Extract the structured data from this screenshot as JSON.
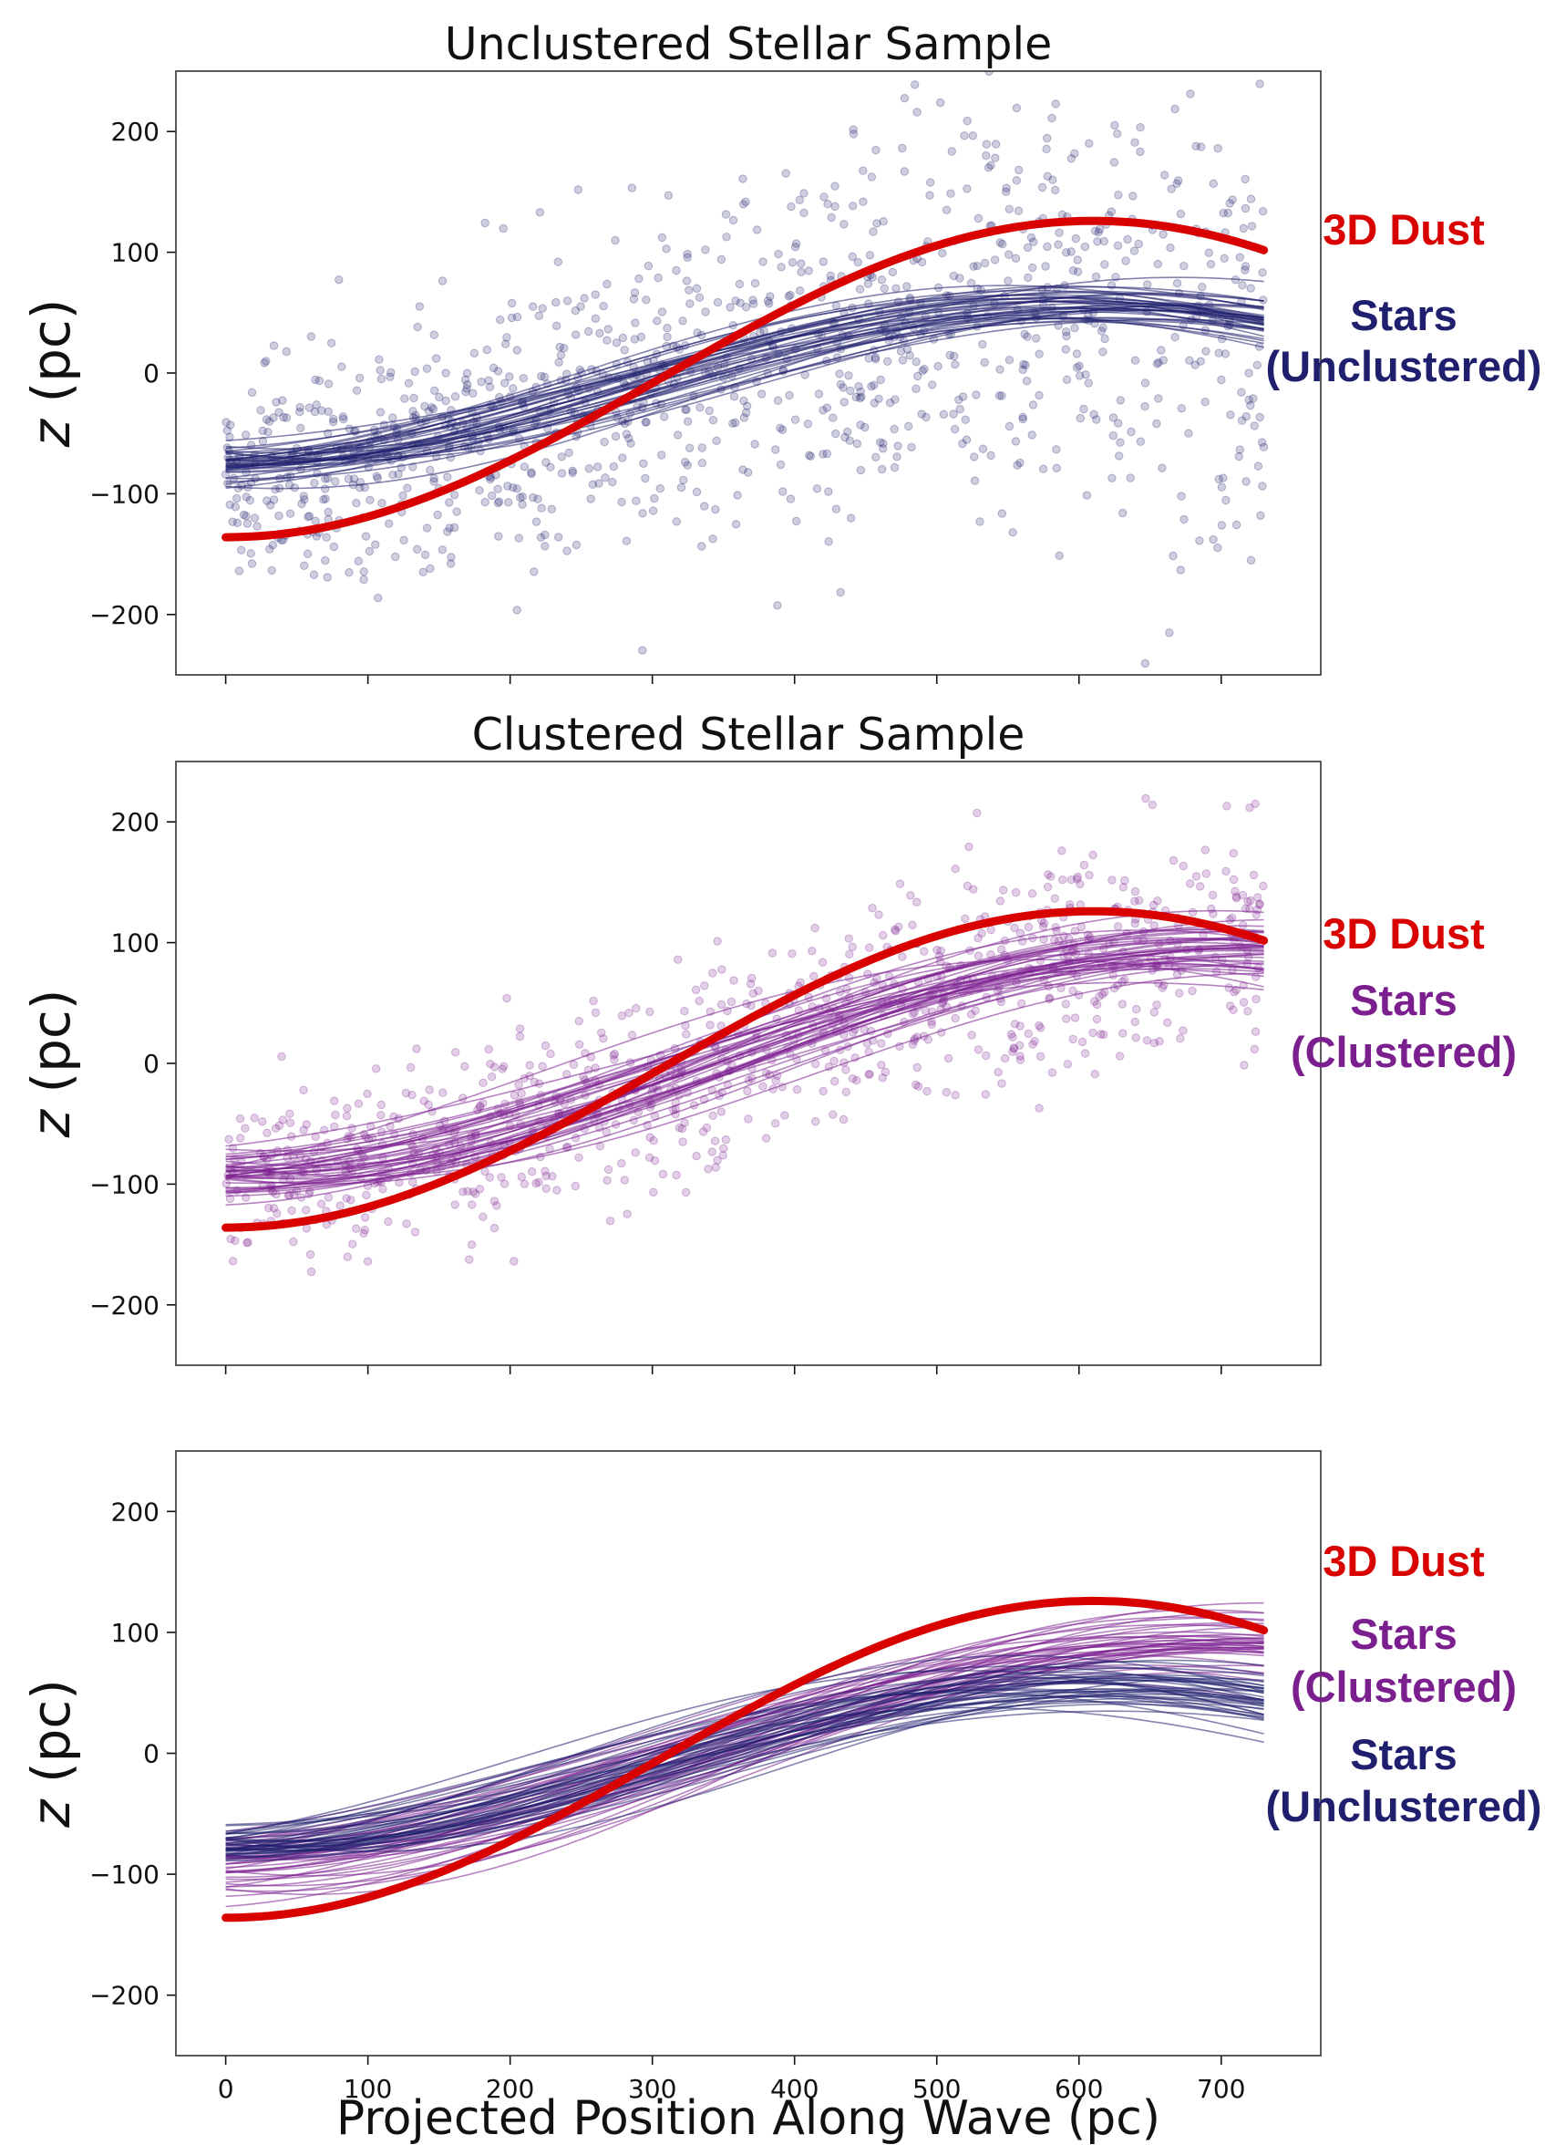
{
  "colors": {
    "dust": "#d90000",
    "unclustered": "#1f1f6e",
    "clustered": "#7b1f8f"
  },
  "xlabel": "Projected Position Along Wave (pc)",
  "chart_data": [
    {
      "type": "scatter",
      "title": "Unclustered Stellar Sample",
      "ylabel": "z (pc)",
      "xlim": [
        -35,
        770
      ],
      "ylim": [
        -250,
        250
      ],
      "xticks": [
        0,
        100,
        200,
        300,
        400,
        500,
        600,
        700
      ],
      "yticks": [
        -200,
        -100,
        0,
        100,
        200
      ],
      "show_xticklabels": false,
      "scatter_series": "unclustered",
      "series": [
        {
          "name": "3D Dust",
          "color": "#d90000",
          "key": "dust",
          "x_range": [
            0,
            730
          ],
          "amplitude": 131,
          "mean": -5,
          "x_peak": 610,
          "period": 1220
        },
        {
          "name": "Stars\n(Unclustered)",
          "color": "#1f1f6e",
          "key": "unclustered",
          "x_range": [
            0,
            730
          ],
          "amplitude": 68,
          "mean": -11,
          "x_peak": 610,
          "period": 1250,
          "n_samples": 40
        }
      ],
      "legend": [
        {
          "label": "3D Dust",
          "color": "#d90000"
        },
        {
          "label": "Stars\n(Unclustered)",
          "color": "#1f1f6e"
        }
      ]
    },
    {
      "type": "scatter",
      "title": "Clustered Stellar Sample",
      "ylabel": "z (pc)",
      "xlim": [
        -35,
        770
      ],
      "ylim": [
        -250,
        250
      ],
      "xticks": [
        0,
        100,
        200,
        300,
        400,
        500,
        600,
        700
      ],
      "yticks": [
        -200,
        -100,
        0,
        100,
        200
      ],
      "show_xticklabels": false,
      "scatter_series": "clustered",
      "series": [
        {
          "name": "3D Dust",
          "color": "#d90000",
          "key": "dust",
          "x_range": [
            0,
            730
          ],
          "amplitude": 131,
          "mean": -5,
          "x_peak": 610,
          "period": 1220
        },
        {
          "name": "Stars\n(Clustered)",
          "color": "#7b1f8f",
          "key": "clustered",
          "x_range": [
            0,
            730
          ],
          "amplitude": 95,
          "mean": 0,
          "x_peak": 700,
          "period": 1420,
          "n_samples": 40
        }
      ],
      "legend": [
        {
          "label": "3D Dust",
          "color": "#d90000"
        },
        {
          "label": "Stars\n(Clustered)",
          "color": "#7b1f8f"
        }
      ]
    },
    {
      "type": "line",
      "title": "",
      "ylabel": "z (pc)",
      "xlim": [
        -35,
        770
      ],
      "ylim": [
        -250,
        250
      ],
      "xticks": [
        0,
        100,
        200,
        300,
        400,
        500,
        600,
        700
      ],
      "yticks": [
        -200,
        -100,
        0,
        100,
        200
      ],
      "show_xticklabels": true,
      "scatter_series": null,
      "series": [
        {
          "name": "3D Dust",
          "color": "#d90000",
          "key": "dust",
          "x_range": [
            0,
            730
          ],
          "amplitude": 131,
          "mean": -5,
          "x_peak": 610,
          "period": 1220
        },
        {
          "name": "Stars\n(Clustered)",
          "color": "#7b1f8f",
          "key": "clustered",
          "x_range": [
            0,
            730
          ],
          "amplitude": 95,
          "mean": 0,
          "x_peak": 700,
          "period": 1420,
          "n_samples": 40
        },
        {
          "name": "Stars\n(Unclustered)",
          "color": "#1f1f6e",
          "key": "unclustered",
          "x_range": [
            0,
            730
          ],
          "amplitude": 68,
          "mean": -11,
          "x_peak": 610,
          "period": 1250,
          "n_samples": 40
        }
      ],
      "legend": [
        {
          "label": "3D Dust",
          "color": "#d90000"
        },
        {
          "label": "Stars\n(Clustered)",
          "color": "#7b1f8f"
        },
        {
          "label": "Stars\n(Unclustered)",
          "color": "#1f1f6e"
        }
      ]
    }
  ]
}
